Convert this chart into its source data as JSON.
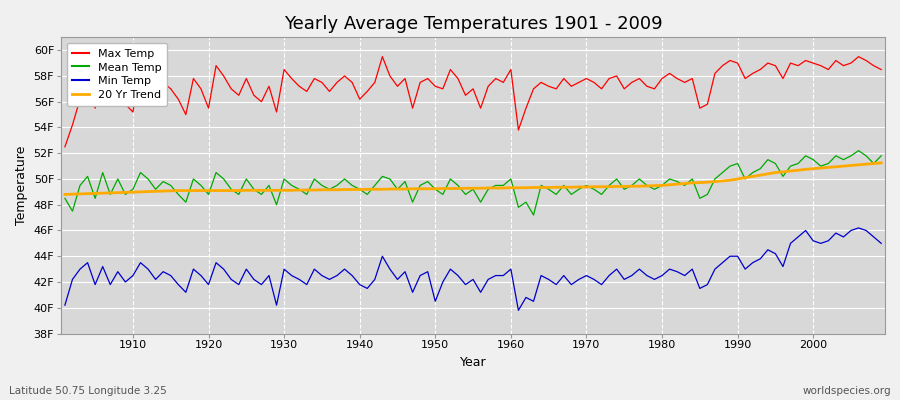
{
  "title": "Yearly Average Temperatures 1901 - 2009",
  "xlabel": "Year",
  "ylabel": "Temperature",
  "lat_lon_label": "Latitude 50.75 Longitude 3.25",
  "source_label": "worldspecies.org",
  "years": [
    1901,
    1902,
    1903,
    1904,
    1905,
    1906,
    1907,
    1908,
    1909,
    1910,
    1911,
    1912,
    1913,
    1914,
    1915,
    1916,
    1917,
    1918,
    1919,
    1920,
    1921,
    1922,
    1923,
    1924,
    1925,
    1926,
    1927,
    1928,
    1929,
    1930,
    1931,
    1932,
    1933,
    1934,
    1935,
    1936,
    1937,
    1938,
    1939,
    1940,
    1941,
    1942,
    1943,
    1944,
    1945,
    1946,
    1947,
    1948,
    1949,
    1950,
    1951,
    1952,
    1953,
    1954,
    1955,
    1956,
    1957,
    1958,
    1959,
    1960,
    1961,
    1962,
    1963,
    1964,
    1965,
    1966,
    1967,
    1968,
    1969,
    1970,
    1971,
    1972,
    1973,
    1974,
    1975,
    1976,
    1977,
    1978,
    1979,
    1980,
    1981,
    1982,
    1983,
    1984,
    1985,
    1986,
    1987,
    1988,
    1989,
    1990,
    1991,
    1992,
    1993,
    1994,
    1995,
    1996,
    1997,
    1998,
    1999,
    2000,
    2001,
    2002,
    2003,
    2004,
    2005,
    2006,
    2007,
    2008,
    2009
  ],
  "max_temp": [
    52.5,
    54.2,
    56.2,
    57.0,
    55.5,
    57.8,
    56.2,
    57.5,
    55.8,
    55.2,
    58.8,
    57.0,
    56.5,
    57.5,
    57.0,
    56.2,
    55.0,
    57.8,
    57.0,
    55.5,
    58.8,
    58.0,
    57.0,
    56.5,
    57.8,
    56.5,
    56.0,
    57.2,
    55.2,
    58.5,
    57.8,
    57.2,
    56.8,
    57.8,
    57.5,
    56.8,
    57.5,
    58.0,
    57.5,
    56.2,
    56.8,
    57.5,
    59.5,
    58.0,
    57.2,
    57.8,
    55.5,
    57.5,
    57.8,
    57.2,
    57.0,
    58.5,
    57.8,
    56.5,
    57.0,
    55.5,
    57.2,
    57.8,
    57.5,
    58.5,
    53.8,
    55.5,
    57.0,
    57.5,
    57.2,
    57.0,
    57.8,
    57.2,
    57.5,
    57.8,
    57.5,
    57.0,
    57.8,
    58.0,
    57.0,
    57.5,
    57.8,
    57.2,
    57.0,
    57.8,
    58.2,
    57.8,
    57.5,
    57.8,
    55.5,
    55.8,
    58.2,
    58.8,
    59.2,
    59.0,
    57.8,
    58.2,
    58.5,
    59.0,
    58.8,
    57.8,
    59.0,
    58.8,
    59.2,
    59.0,
    58.8,
    58.5,
    59.2,
    58.8,
    59.0,
    59.5,
    59.2,
    58.8,
    58.5
  ],
  "mean_temp": [
    48.5,
    47.5,
    49.5,
    50.2,
    48.5,
    50.5,
    48.8,
    50.0,
    48.8,
    49.2,
    50.5,
    50.0,
    49.2,
    49.8,
    49.5,
    48.8,
    48.2,
    50.0,
    49.5,
    48.8,
    50.5,
    50.0,
    49.2,
    48.8,
    50.0,
    49.2,
    48.8,
    49.5,
    48.0,
    50.0,
    49.5,
    49.2,
    48.8,
    50.0,
    49.5,
    49.2,
    49.5,
    50.0,
    49.5,
    49.2,
    48.8,
    49.5,
    50.2,
    50.0,
    49.2,
    49.8,
    48.2,
    49.5,
    49.8,
    49.2,
    48.8,
    50.0,
    49.5,
    48.8,
    49.2,
    48.2,
    49.2,
    49.5,
    49.5,
    50.0,
    47.8,
    48.2,
    47.2,
    49.5,
    49.2,
    48.8,
    49.5,
    48.8,
    49.2,
    49.5,
    49.2,
    48.8,
    49.5,
    50.0,
    49.2,
    49.5,
    50.0,
    49.5,
    49.2,
    49.5,
    50.0,
    49.8,
    49.5,
    50.0,
    48.5,
    48.8,
    50.0,
    50.5,
    51.0,
    51.2,
    50.0,
    50.5,
    50.8,
    51.5,
    51.2,
    50.2,
    51.0,
    51.2,
    51.8,
    51.5,
    51.0,
    51.2,
    51.8,
    51.5,
    51.8,
    52.2,
    51.8,
    51.2,
    51.8
  ],
  "min_temp": [
    40.2,
    42.2,
    43.0,
    43.5,
    41.8,
    43.2,
    41.8,
    42.8,
    42.0,
    42.5,
    43.5,
    43.0,
    42.2,
    42.8,
    42.5,
    41.8,
    41.2,
    43.0,
    42.5,
    41.8,
    43.5,
    43.0,
    42.2,
    41.8,
    43.0,
    42.2,
    41.8,
    42.5,
    40.2,
    43.0,
    42.5,
    42.2,
    41.8,
    43.0,
    42.5,
    42.2,
    42.5,
    43.0,
    42.5,
    41.8,
    41.5,
    42.2,
    44.0,
    43.0,
    42.2,
    42.8,
    41.2,
    42.5,
    42.8,
    40.5,
    42.0,
    43.0,
    42.5,
    41.8,
    42.2,
    41.2,
    42.2,
    42.5,
    42.5,
    43.0,
    39.8,
    40.8,
    40.5,
    42.5,
    42.2,
    41.8,
    42.5,
    41.8,
    42.2,
    42.5,
    42.2,
    41.8,
    42.5,
    43.0,
    42.2,
    42.5,
    43.0,
    42.5,
    42.2,
    42.5,
    43.0,
    42.8,
    42.5,
    43.0,
    41.5,
    41.8,
    43.0,
    43.5,
    44.0,
    44.0,
    43.0,
    43.5,
    43.8,
    44.5,
    44.2,
    43.2,
    45.0,
    45.5,
    46.0,
    45.2,
    45.0,
    45.2,
    45.8,
    45.5,
    46.0,
    46.2,
    46.0,
    45.5,
    45.0
  ],
  "trend": [
    48.8,
    48.82,
    48.84,
    48.86,
    48.88,
    48.9,
    48.92,
    48.94,
    48.96,
    48.98,
    49.0,
    49.02,
    49.04,
    49.06,
    49.08,
    49.1,
    49.1,
    49.1,
    49.1,
    49.1,
    49.1,
    49.1,
    49.1,
    49.1,
    49.12,
    49.12,
    49.12,
    49.12,
    49.12,
    49.12,
    49.12,
    49.14,
    49.14,
    49.14,
    49.16,
    49.16,
    49.16,
    49.18,
    49.18,
    49.18,
    49.2,
    49.2,
    49.2,
    49.22,
    49.22,
    49.22,
    49.24,
    49.24,
    49.24,
    49.24,
    49.26,
    49.26,
    49.26,
    49.28,
    49.28,
    49.28,
    49.3,
    49.3,
    49.3,
    49.32,
    49.32,
    49.32,
    49.34,
    49.34,
    49.34,
    49.36,
    49.36,
    49.36,
    49.38,
    49.38,
    49.4,
    49.4,
    49.4,
    49.42,
    49.42,
    49.44,
    49.44,
    49.46,
    49.48,
    49.5,
    49.55,
    49.6,
    49.65,
    49.7,
    49.72,
    49.75,
    49.8,
    49.85,
    49.9,
    50.0,
    50.1,
    50.2,
    50.3,
    50.4,
    50.5,
    50.55,
    50.62,
    50.68,
    50.75,
    50.8,
    50.85,
    50.9,
    50.95,
    51.0,
    51.05,
    51.1,
    51.15,
    51.2,
    51.25
  ],
  "max_color": "#ff0000",
  "mean_color": "#00aa00",
  "min_color": "#0000cc",
  "trend_color": "#ffaa00",
  "fig_bg_color": "#f0f0f0",
  "plot_bg_color": "#d8d8d8",
  "grid_color": "#ffffff",
  "ylim": [
    38,
    61
  ],
  "ytick_vals": [
    38,
    40,
    42,
    44,
    46,
    48,
    50,
    52,
    54,
    56,
    58,
    60
  ],
  "ytick_labels": [
    "38F",
    "40F",
    "42F",
    "44F",
    "46F",
    "48F",
    "50F",
    "52F",
    "54F",
    "56F",
    "58F",
    "60F"
  ],
  "xtick_vals": [
    1910,
    1920,
    1930,
    1940,
    1950,
    1960,
    1970,
    1980,
    1990,
    2000
  ],
  "title_fontsize": 13,
  "axis_label_fontsize": 9,
  "tick_fontsize": 8,
  "legend_fontsize": 8
}
